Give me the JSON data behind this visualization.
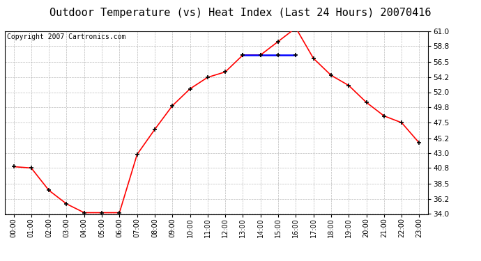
{
  "title": "Outdoor Temperature (vs) Heat Index (Last 24 Hours) 20070416",
  "copyright": "Copyright 2007 Cartronics.com",
  "hours": [
    "00:00",
    "01:00",
    "02:00",
    "03:00",
    "04:00",
    "05:00",
    "06:00",
    "07:00",
    "08:00",
    "09:00",
    "10:00",
    "11:00",
    "12:00",
    "13:00",
    "14:00",
    "15:00",
    "16:00",
    "17:00",
    "18:00",
    "19:00",
    "20:00",
    "21:00",
    "22:00",
    "23:00"
  ],
  "temp_values": [
    41.0,
    40.8,
    37.5,
    35.5,
    34.2,
    34.2,
    34.2,
    42.8,
    46.5,
    50.0,
    52.5,
    54.2,
    55.0,
    57.5,
    57.5,
    59.5,
    61.5,
    57.0,
    54.5,
    53.0,
    50.5,
    48.5,
    47.5,
    44.5
  ],
  "heat_index_values": [
    null,
    null,
    null,
    null,
    null,
    null,
    null,
    null,
    null,
    null,
    null,
    null,
    null,
    57.5,
    57.5,
    57.5,
    57.5,
    null,
    null,
    null,
    null,
    null,
    null,
    null
  ],
  "y_min": 34.0,
  "y_max": 61.0,
  "y_ticks": [
    34.0,
    36.2,
    38.5,
    40.8,
    43.0,
    45.2,
    47.5,
    49.8,
    52.0,
    54.2,
    56.5,
    58.8,
    61.0
  ],
  "line_color": "#ff0000",
  "heat_index_color": "#0000ff",
  "marker_color": "#000000",
  "background_color": "#ffffff",
  "grid_color": "#aaaaaa",
  "title_fontsize": 11,
  "copyright_fontsize": 7,
  "tick_fontsize": 7,
  "ytick_fontsize": 7.5
}
